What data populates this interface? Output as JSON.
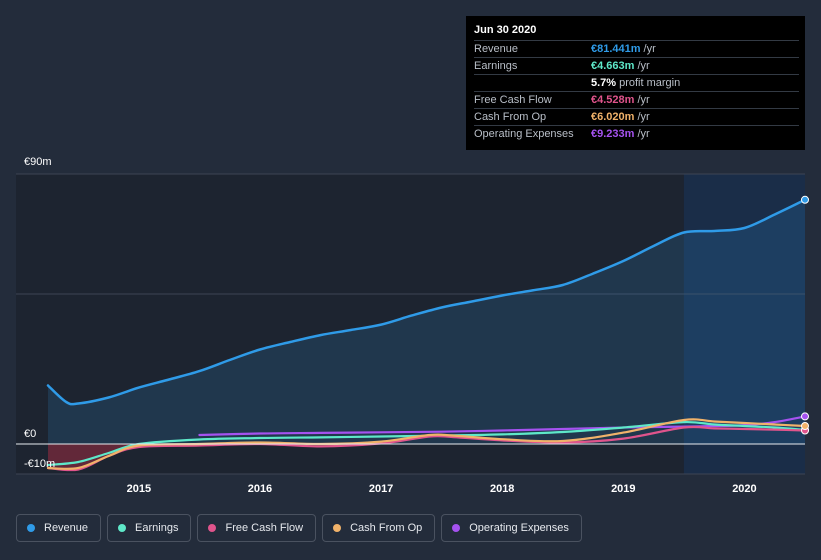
{
  "tooltip": {
    "date": "Jun 30 2020",
    "rows": [
      {
        "label": "Revenue",
        "value": "€81.441m",
        "unit": "/yr",
        "color": "#2f9be8"
      },
      {
        "label": "Earnings",
        "value": "€4.663m",
        "unit": "/yr",
        "color": "#5ee8c9"
      },
      {
        "label": "",
        "value": "5.7%",
        "unit": "profit margin",
        "color": "#ffffff"
      },
      {
        "label": "Free Cash Flow",
        "value": "€4.528m",
        "unit": "/yr",
        "color": "#e0548c"
      },
      {
        "label": "Cash From Op",
        "value": "€6.020m",
        "unit": "/yr",
        "color": "#f0b26a"
      },
      {
        "label": "Operating Expenses",
        "value": "€9.233m",
        "unit": "/yr",
        "color": "#a552f0"
      }
    ]
  },
  "legend": [
    {
      "label": "Revenue",
      "color": "#2f9be8"
    },
    {
      "label": "Earnings",
      "color": "#5ee8c9"
    },
    {
      "label": "Free Cash Flow",
      "color": "#e0548c"
    },
    {
      "label": "Cash From Op",
      "color": "#f0b26a"
    },
    {
      "label": "Operating Expenses",
      "color": "#a552f0"
    }
  ],
  "chart_data": {
    "type": "line",
    "y_tick_labels": {
      "top": "€90m",
      "zero": "€0",
      "bottom": "-€10m"
    },
    "ylim": [
      -10,
      90
    ],
    "xlim": [
      2014.25,
      2020.5
    ],
    "x_tick_labels": [
      "2015",
      "2016",
      "2017",
      "2018",
      "2019",
      "2020"
    ],
    "x_tick_values": [
      2015,
      2016,
      2017,
      2018,
      2019,
      2020
    ],
    "highlight_start": 2019.5,
    "series": [
      {
        "name": "Revenue",
        "color": "#2f9be8",
        "area": true,
        "x": [
          2014.25,
          2014.4,
          2014.5,
          2014.75,
          2015.0,
          2015.25,
          2015.5,
          2015.75,
          2016.0,
          2016.25,
          2016.5,
          2016.75,
          2017.0,
          2017.25,
          2017.5,
          2017.75,
          2018.0,
          2018.25,
          2018.5,
          2018.75,
          2019.0,
          2019.25,
          2019.5,
          2019.75,
          2020.0,
          2020.25,
          2020.5
        ],
        "values": [
          19.5,
          14,
          13.5,
          15.5,
          18.8,
          21.5,
          24.3,
          28,
          31.5,
          34,
          36.3,
          38,
          39.8,
          42.8,
          45.5,
          47.5,
          49.5,
          51.2,
          53,
          56.8,
          61,
          66,
          70.5,
          71,
          72,
          76.5,
          81.4
        ]
      },
      {
        "name": "Earnings",
        "color": "#5ee8c9",
        "area": false,
        "x": [
          2014.25,
          2014.5,
          2014.75,
          2015.0,
          2015.5,
          2016.0,
          2016.5,
          2017.0,
          2017.5,
          2018.0,
          2018.5,
          2019.0,
          2019.5,
          2019.75,
          2020.0,
          2020.25,
          2020.5
        ],
        "values": [
          -7,
          -6,
          -3,
          0,
          1.5,
          2,
          2.2,
          2.5,
          2.8,
          3.2,
          4,
          5.5,
          7.3,
          6.5,
          6,
          5.5,
          4.7
        ]
      },
      {
        "name": "Free Cash Flow",
        "color": "#e0548c",
        "area": false,
        "x": [
          2014.25,
          2014.5,
          2014.75,
          2015.0,
          2015.5,
          2016.0,
          2016.5,
          2017.0,
          2017.4,
          2017.6,
          2018.0,
          2018.5,
          2019.0,
          2019.5,
          2019.75,
          2020.0,
          2020.25,
          2020.5
        ],
        "values": [
          -8,
          -8.5,
          -4,
          -1,
          -0.5,
          0,
          -0.8,
          0.2,
          2.5,
          2.3,
          1.2,
          0.5,
          1.8,
          5.5,
          5.2,
          5,
          4.8,
          4.5
        ]
      },
      {
        "name": "Cash From Op",
        "color": "#f0b26a",
        "area": false,
        "x": [
          2014.25,
          2014.5,
          2014.75,
          2015.0,
          2015.5,
          2016.0,
          2016.5,
          2017.0,
          2017.4,
          2017.6,
          2018.0,
          2018.5,
          2019.0,
          2019.5,
          2019.75,
          2020.0,
          2020.25,
          2020.5
        ],
        "values": [
          -8,
          -8,
          -4,
          -0.5,
          0,
          0.5,
          0,
          0.8,
          3,
          2.8,
          1.6,
          1,
          3.8,
          8,
          7.5,
          7,
          6.5,
          6
        ]
      },
      {
        "name": "Operating Expenses",
        "color": "#a552f0",
        "area": false,
        "x": [
          2015.5,
          2016.0,
          2016.5,
          2017.0,
          2017.5,
          2018.0,
          2018.5,
          2019.0,
          2019.5,
          2019.75,
          2020.0,
          2020.25,
          2020.5
        ],
        "values": [
          3,
          3.5,
          3.7,
          3.9,
          4.1,
          4.5,
          5,
          5.5,
          5.8,
          6,
          6.3,
          7.3,
          9.2
        ]
      }
    ]
  }
}
